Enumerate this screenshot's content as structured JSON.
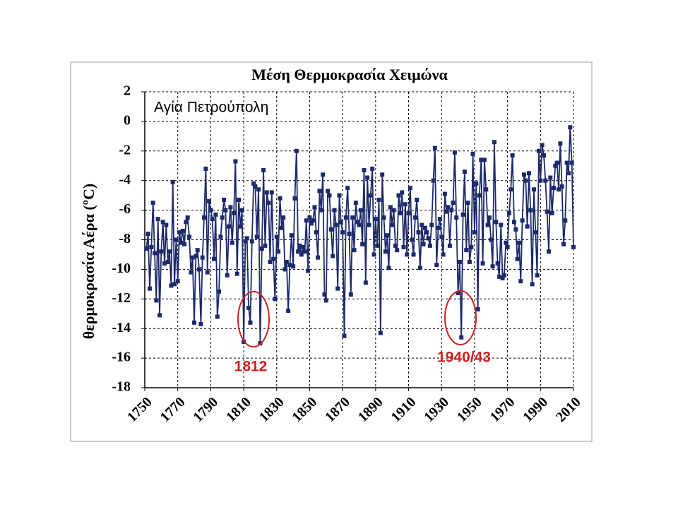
{
  "chart_data": {
    "type": "line",
    "title": "Μέση Θερμοκρασία Χειμώνα",
    "subtitle": "Αγία Πετρούπολη",
    "y_label": "θερμοκρασία Αέρα (ºC)",
    "annotations": [
      "1812",
      "1940/43"
    ],
    "xlim": [
      1750,
      2010
    ],
    "xticks": [
      1750,
      1770,
      1790,
      1810,
      1830,
      1850,
      1870,
      1890,
      1910,
      1930,
      1950,
      1970,
      1990,
      2010
    ],
    "ylim": [
      -18,
      2
    ],
    "yticks": [
      2,
      0,
      -2,
      -4,
      -6,
      -8,
      -10,
      -12,
      -14,
      -16,
      -18
    ],
    "grid": true,
    "x": [
      1751,
      1752,
      1753,
      1754,
      1755,
      1756,
      1757,
      1758,
      1759,
      1760,
      1761,
      1762,
      1763,
      1764,
      1765,
      1766,
      1767,
      1768,
      1769,
      1770,
      1771,
      1772,
      1773,
      1774,
      1775,
      1776,
      1777,
      1778,
      1779,
      1780,
      1781,
      1782,
      1783,
      1784,
      1785,
      1786,
      1787,
      1788,
      1789,
      1790,
      1791,
      1792,
      1793,
      1794,
      1795,
      1796,
      1797,
      1798,
      1799,
      1800,
      1801,
      1802,
      1803,
      1804,
      1805,
      1806,
      1807,
      1808,
      1809,
      1810,
      1811,
      1812,
      1813,
      1814,
      1815,
      1816,
      1817,
      1818,
      1819,
      1820,
      1821,
      1822,
      1823,
      1824,
      1825,
      1826,
      1827,
      1828,
      1829,
      1830,
      1831,
      1832,
      1833,
      1834,
      1835,
      1836,
      1837,
      1838,
      1839,
      1840,
      1841,
      1842,
      1843,
      1844,
      1845,
      1846,
      1847,
      1848,
      1849,
      1850,
      1851,
      1852,
      1853,
      1854,
      1855,
      1856,
      1857,
      1858,
      1859,
      1860,
      1861,
      1862,
      1863,
      1864,
      1865,
      1866,
      1867,
      1868,
      1869,
      1870,
      1871,
      1872,
      1873,
      1874,
      1875,
      1876,
      1877,
      1878,
      1879,
      1880,
      1881,
      1882,
      1883,
      1884,
      1885,
      1886,
      1887,
      1888,
      1889,
      1890,
      1891,
      1892,
      1893,
      1894,
      1895,
      1896,
      1897,
      1898,
      1899,
      1900,
      1901,
      1902,
      1903,
      1904,
      1905,
      1906,
      1907,
      1908,
      1909,
      1910,
      1911,
      1912,
      1913,
      1914,
      1915,
      1916,
      1917,
      1918,
      1919,
      1920,
      1921,
      1922,
      1923,
      1924,
      1925,
      1926,
      1927,
      1928,
      1929,
      1930,
      1931,
      1932,
      1933,
      1934,
      1935,
      1936,
      1937,
      1938,
      1939,
      1940,
      1941,
      1942,
      1943,
      1944,
      1945,
      1946,
      1947,
      1948,
      1949,
      1950,
      1951,
      1952,
      1953,
      1954,
      1955,
      1956,
      1957,
      1958,
      1959,
      1960,
      1961,
      1962,
      1963,
      1964,
      1965,
      1966,
      1967,
      1968,
      1969,
      1970,
      1971,
      1972,
      1973,
      1974,
      1975,
      1976,
      1977,
      1978,
      1979,
      1980,
      1981,
      1982,
      1983,
      1984,
      1985,
      1986,
      1987,
      1988,
      1989,
      1990,
      1991,
      1992,
      1993,
      1994,
      1995,
      1996,
      1997,
      1998,
      1999,
      2000,
      2001,
      2002,
      2003,
      2004,
      2005,
      2006,
      2007,
      2008,
      2009,
      2010
    ],
    "series": [
      {
        "color": "#1c2a6b",
        "values": [
          -8.6,
          -7.6,
          -11.3,
          -8.5,
          -5.5,
          -8.9,
          -12.1,
          -6.6,
          -13.1,
          -8.8,
          -6.8,
          -9.6,
          -7.0,
          -9.5,
          -8.8,
          -11.1,
          -4.1,
          -11.0,
          -8.0,
          -10.8,
          -7.5,
          -8.2,
          -7.4,
          -8.3,
          -6.8,
          -6.5,
          -7.8,
          -10.2,
          -9.2,
          -13.6,
          -9.1,
          -8.7,
          -10.0,
          -13.7,
          -9.2,
          -6.5,
          -3.2,
          -10.2,
          -5.4,
          -6.0,
          -6.6,
          -9.3,
          -6.3,
          -13.2,
          -11.5,
          -7.8,
          -6.5,
          -5.3,
          -6.0,
          -10.4,
          -7.1,
          -5.8,
          -8.2,
          -6.2,
          -2.7,
          -10.3,
          -5.3,
          -7.1,
          -6.0,
          -14.9,
          -8.1,
          -7.9,
          -12.6,
          -13.6,
          -8.1,
          -4.2,
          -4.4,
          -7.8,
          -4.6,
          -15.0,
          -8.6,
          -3.3,
          -8.4,
          -4.8,
          -5.5,
          -9.5,
          -4.8,
          -9.3,
          -12.0,
          -7.8,
          -8.8,
          -5.2,
          -7.2,
          -6.5,
          -10.0,
          -9.5,
          -12.8,
          -9.7,
          -7.7,
          -9.8,
          -5.2,
          -2.0,
          -8.8,
          -8.4,
          -9.0,
          -8.5,
          -8.8,
          -6.7,
          -10.1,
          -6.5,
          -6.9,
          -6.7,
          -5.8,
          -7.5,
          -9.2,
          -4.7,
          -6.0,
          -3.6,
          -11.7,
          -12.1,
          -4.7,
          -5.0,
          -7.3,
          -9.1,
          -6.0,
          -7.0,
          -11.3,
          -5.0,
          -6.8,
          -7.5,
          -14.5,
          -6.5,
          -4.5,
          -7.6,
          -11.7,
          -6.5,
          -8.7,
          -5.5,
          -6.8,
          -7.0,
          -6.0,
          -8.3,
          -3.3,
          -10.9,
          -3.8,
          -7.0,
          -5.0,
          -3.2,
          -9.0,
          -6.6,
          -8.4,
          -5.3,
          -14.3,
          -3.6,
          -6.5,
          -8.8,
          -7.7,
          -9.9,
          -5.8,
          -7.0,
          -6.0,
          -8.4,
          -8.7,
          -5.0,
          -6.2,
          -4.8,
          -8.5,
          -5.6,
          -9.0,
          -6.2,
          -4.5,
          -8.0,
          -9.0,
          -6.5,
          -5.3,
          -7.5,
          -9.9,
          -7.0,
          -8.3,
          -7.2,
          -7.5,
          -7.9,
          -8.4,
          -7.0,
          -4.0,
          -1.8,
          -9.7,
          -7.2,
          -6.6,
          -7.8,
          -9.0,
          -4.9,
          -6.1,
          -5.8,
          -8.4,
          -6.0,
          -5.5,
          -2.1,
          -6.5,
          -11.6,
          -9.5,
          -14.6,
          -6.3,
          -3.4,
          -8.7,
          -5.5,
          -9.5,
          -8.5,
          -2.2,
          -7.5,
          -4.2,
          -12.7,
          -5.0,
          -2.6,
          -9.6,
          -2.6,
          -4.6,
          -7.0,
          -6.5,
          -8.0,
          -9.8,
          -1.4,
          -6.8,
          -9.6,
          -10.5,
          -7.0,
          -10.6,
          -10.4,
          -8.2,
          -8.5,
          -6.2,
          -4.6,
          -2.3,
          -6.8,
          -7.3,
          -9.3,
          -8.2,
          -10.8,
          -6.7,
          -3.6,
          -4.0,
          -7.1,
          -3.5,
          -6.0,
          -11.0,
          -4.6,
          -7.5,
          -10.4,
          -2.0,
          -4.0,
          -1.6,
          -2.3,
          -4.0,
          -6.1,
          -8.8,
          -3.8,
          -6.2,
          -4.5,
          -3.0,
          -2.8,
          -4.6,
          -1.5,
          -4.4,
          -8.3,
          -6.7,
          -2.8,
          -3.5,
          -0.4,
          -2.8,
          -8.5
        ]
      }
    ]
  }
}
